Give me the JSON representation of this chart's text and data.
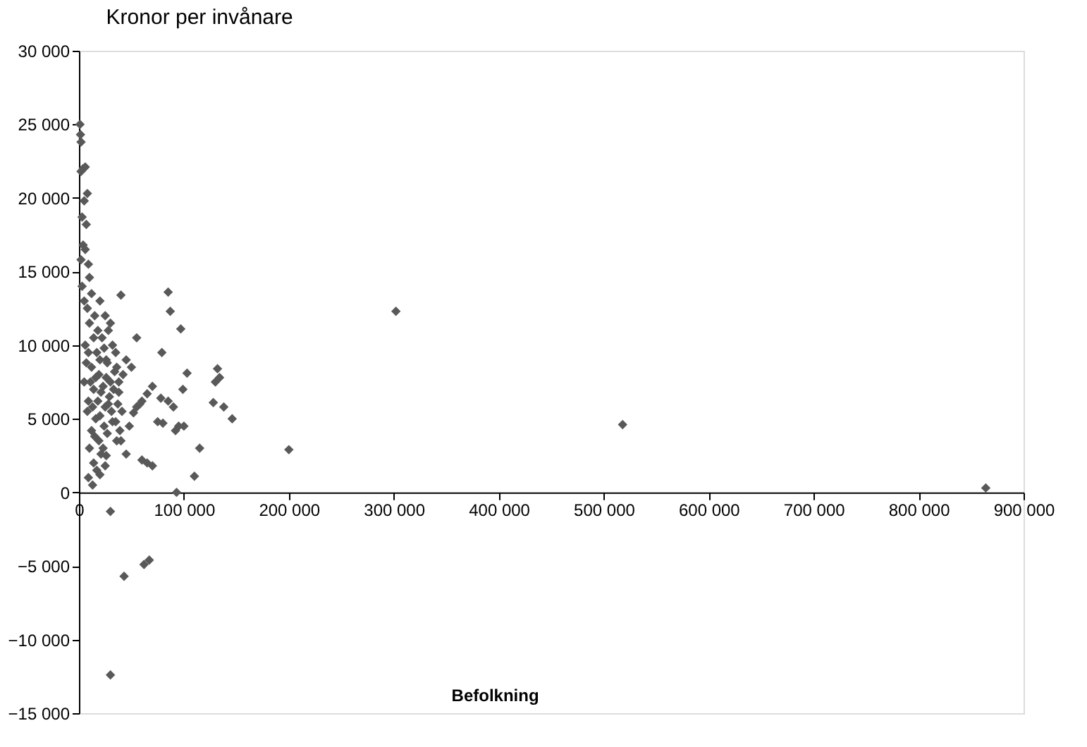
{
  "chart_data": {
    "type": "scatter",
    "title": "Kronor per invånare",
    "xlabel": "Befolkning",
    "marker": "diamond",
    "grid": false,
    "xlim": [
      0,
      900000
    ],
    "xticks": [
      0,
      100000,
      200000,
      300000,
      400000,
      500000,
      600000,
      700000,
      800000,
      900000
    ],
    "ylim": [
      -15000,
      30000
    ],
    "yticks": [
      -15000,
      -10000,
      -5000,
      0,
      5000,
      10000,
      15000,
      20000,
      25000,
      30000
    ],
    "series": [
      {
        "color": "#595959",
        "x": [
          864000,
          518000,
          302000,
          200000,
          146000,
          138000,
          132000,
          134000,
          130000,
          128000,
          115000,
          110000,
          93000,
          85000,
          87000,
          97000,
          103000,
          79000,
          99000,
          85000,
          90000,
          95000,
          92000,
          100000,
          78000,
          75000,
          70000,
          65000,
          60000,
          55000,
          80000,
          70000,
          60000,
          65000,
          30000,
          43000,
          62000,
          67000,
          30000,
          1000,
          1500,
          2000,
          4000,
          6000,
          2000,
          8000,
          5000,
          3000,
          7000,
          4000,
          6000,
          2000,
          9000,
          10000,
          3000,
          40000,
          30000,
          55000,
          25000,
          20000,
          45000,
          50000,
          35000,
          5000,
          8000,
          12000,
          15000,
          18000,
          22000,
          26000,
          28000,
          32000,
          36000,
          38000,
          42000,
          10000,
          14000,
          17000,
          20000,
          24000,
          27000,
          30000,
          34000,
          38000,
          6000,
          9000,
          12000,
          16000,
          19000,
          23000,
          26000,
          29000,
          33000,
          37000,
          41000,
          7000,
          11000,
          14000,
          18000,
          21000,
          25000,
          28000,
          31000,
          35000,
          39000,
          5000,
          9000,
          13000,
          16000,
          20000,
          24000,
          27000,
          32000,
          36000,
          8000,
          12000,
          15000,
          19000,
          23000,
          26000,
          10000,
          14000,
          17000,
          21000,
          25000,
          9000,
          13000,
          20000,
          40000,
          45000,
          48000,
          52000,
          58000
        ],
        "values": [
          300,
          4600,
          12300,
          2900,
          5000,
          5800,
          8400,
          7800,
          7500,
          6100,
          3000,
          1100,
          0,
          13600,
          12300,
          11100,
          8100,
          9500,
          7000,
          6200,
          5800,
          4500,
          4200,
          4500,
          6400,
          4800,
          7200,
          6700,
          6200,
          5800,
          4700,
          1800,
          2200,
          2000,
          -1300,
          -5700,
          -4900,
          -4600,
          -12400,
          25000,
          24300,
          23800,
          22000,
          22100,
          21800,
          20300,
          19800,
          18700,
          18200,
          16800,
          16500,
          15800,
          15500,
          14600,
          14000,
          13400,
          11500,
          10500,
          12000,
          13000,
          9000,
          8500,
          9500,
          13000,
          12500,
          13500,
          12000,
          11000,
          10500,
          9000,
          11000,
          10000,
          8500,
          7500,
          8000,
          11500,
          10500,
          9500,
          9000,
          9800,
          8800,
          7500,
          8200,
          6800,
          10000,
          9500,
          8500,
          7800,
          8000,
          7200,
          7800,
          6500,
          7000,
          6000,
          5500,
          8800,
          7500,
          7000,
          6200,
          6800,
          5800,
          6000,
          5500,
          4800,
          4200,
          7500,
          6200,
          5800,
          5000,
          5200,
          4500,
          4000,
          4800,
          3500,
          5500,
          4200,
          3800,
          3500,
          3000,
          2500,
          3000,
          2000,
          1500,
          2600,
          1800,
          1000,
          500,
          1200,
          3500,
          2600,
          4500,
          5400,
          6000
        ]
      }
    ]
  }
}
